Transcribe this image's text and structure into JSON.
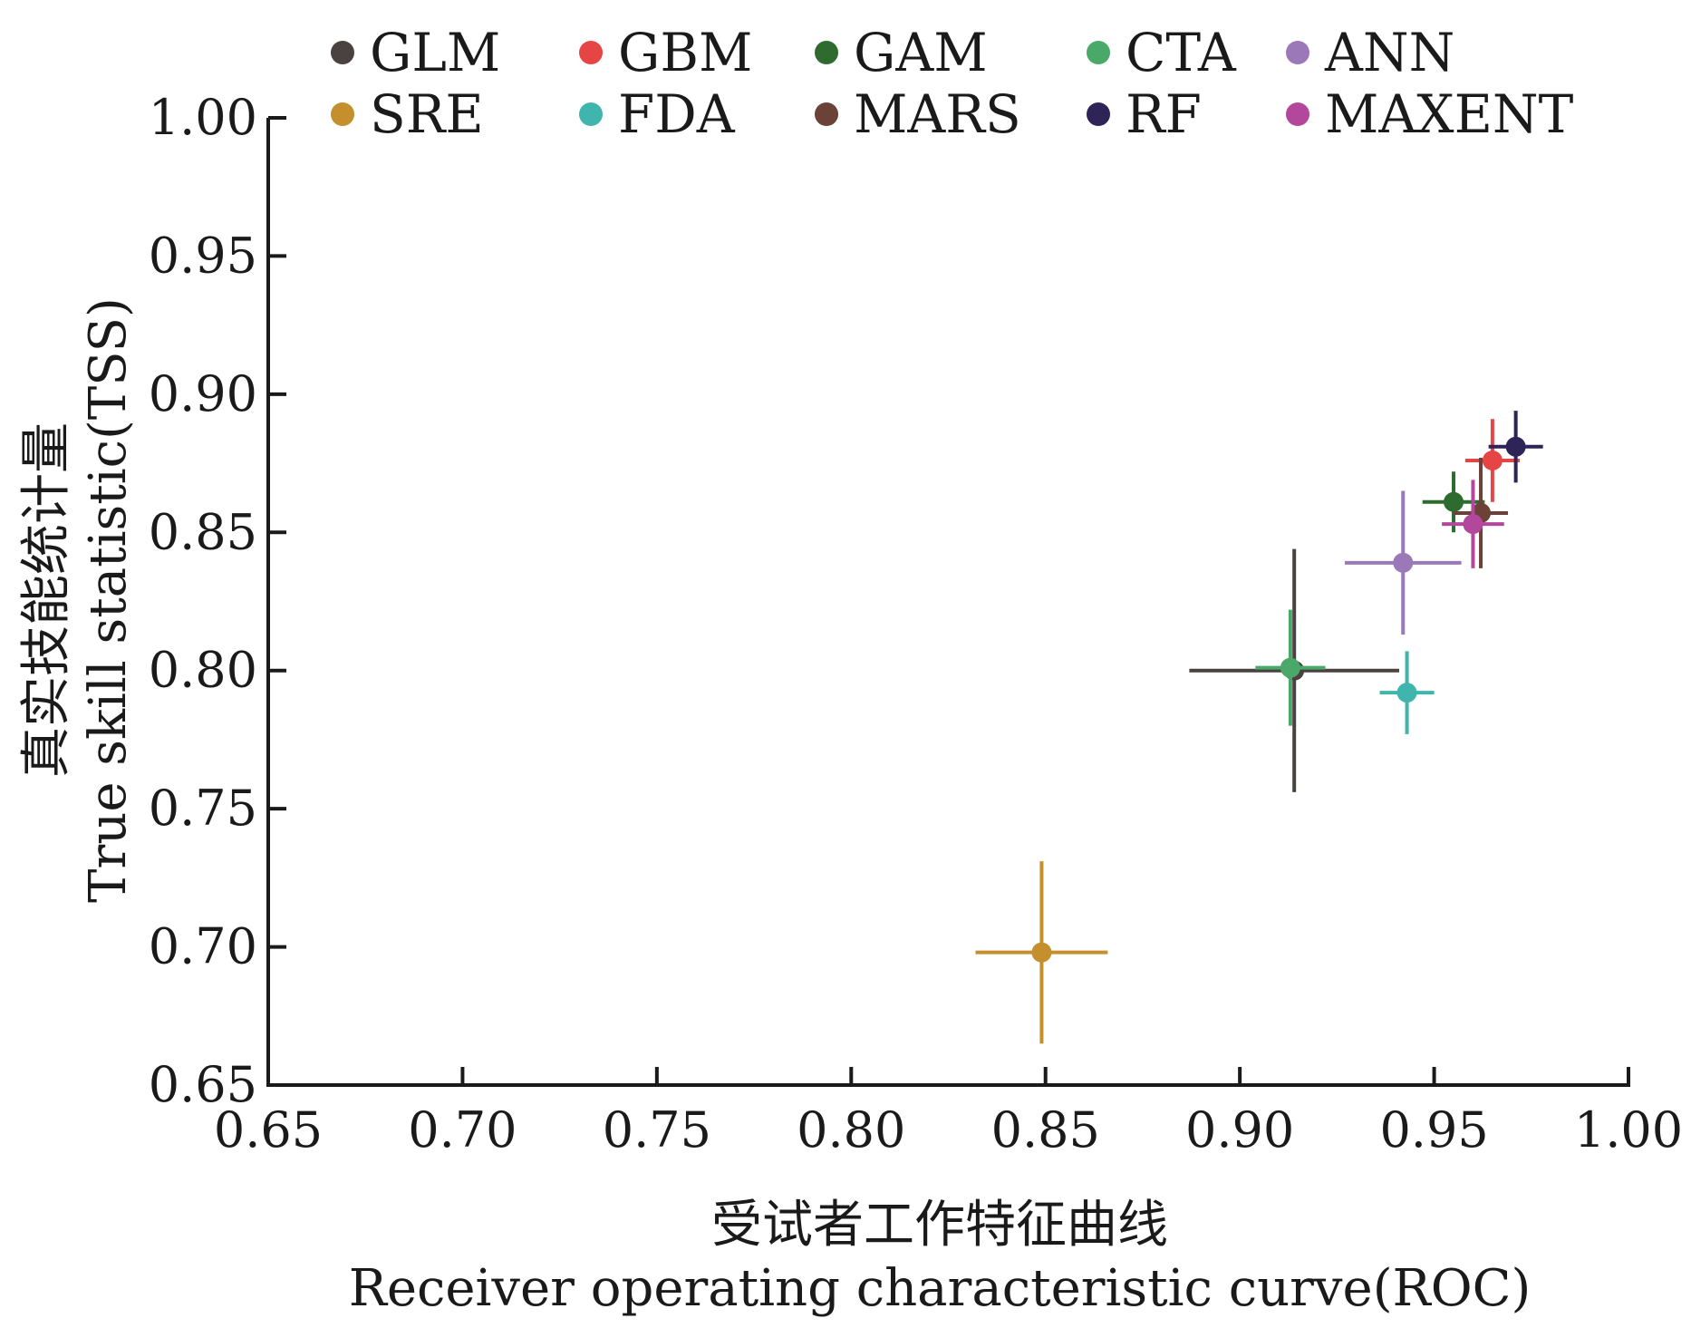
{
  "chart_data": {
    "type": "scatter",
    "title": "",
    "xlabel_cn": "受试者工作特征曲线",
    "xlabel": "Receiver operating characteristic curve(ROC)",
    "ylabel_cn": "真实技能统计量",
    "ylabel": "True skill statistic(TSS)",
    "xlim": [
      0.65,
      1.0
    ],
    "ylim": [
      0.65,
      1.0
    ],
    "x_ticks": [
      "0.65",
      "0.70",
      "0.75",
      "0.80",
      "0.85",
      "0.90",
      "0.95",
      "1.00"
    ],
    "y_ticks": [
      "0.65",
      "0.70",
      "0.75",
      "0.80",
      "0.85",
      "0.90",
      "0.95",
      "1.00"
    ],
    "grid": false,
    "legend_position": "top",
    "series": [
      {
        "name": "GLM",
        "color": "#4a4240",
        "x": 0.914,
        "y": 0.8,
        "x_err": 0.027,
        "y_err": 0.044
      },
      {
        "name": "GBM",
        "color": "#e64545",
        "x": 0.965,
        "y": 0.876,
        "x_err": 0.007,
        "y_err": 0.015
      },
      {
        "name": "GAM",
        "color": "#2e6b2e",
        "x": 0.955,
        "y": 0.861,
        "x_err": 0.008,
        "y_err": 0.011
      },
      {
        "name": "CTA",
        "color": "#4aa869",
        "x": 0.913,
        "y": 0.801,
        "x_err": 0.009,
        "y_err": 0.021
      },
      {
        "name": "ANN",
        "color": "#9b78b8",
        "x": 0.942,
        "y": 0.839,
        "x_err": 0.015,
        "y_err": 0.026
      },
      {
        "name": "SRE",
        "color": "#c48f2c",
        "x": 0.849,
        "y": 0.698,
        "x_err": 0.017,
        "y_err": 0.033
      },
      {
        "name": "FDA",
        "color": "#3fb5ad",
        "x": 0.943,
        "y": 0.792,
        "x_err": 0.007,
        "y_err": 0.015
      },
      {
        "name": "MARS",
        "color": "#6b4138",
        "x": 0.962,
        "y": 0.857,
        "x_err": 0.007,
        "y_err": 0.02
      },
      {
        "name": "RF",
        "color": "#2e2458",
        "x": 0.971,
        "y": 0.881,
        "x_err": 0.007,
        "y_err": 0.013
      },
      {
        "name": "MAXENT",
        "color": "#b2479b",
        "x": 0.96,
        "y": 0.853,
        "x_err": 0.008,
        "y_err": 0.016
      }
    ]
  }
}
